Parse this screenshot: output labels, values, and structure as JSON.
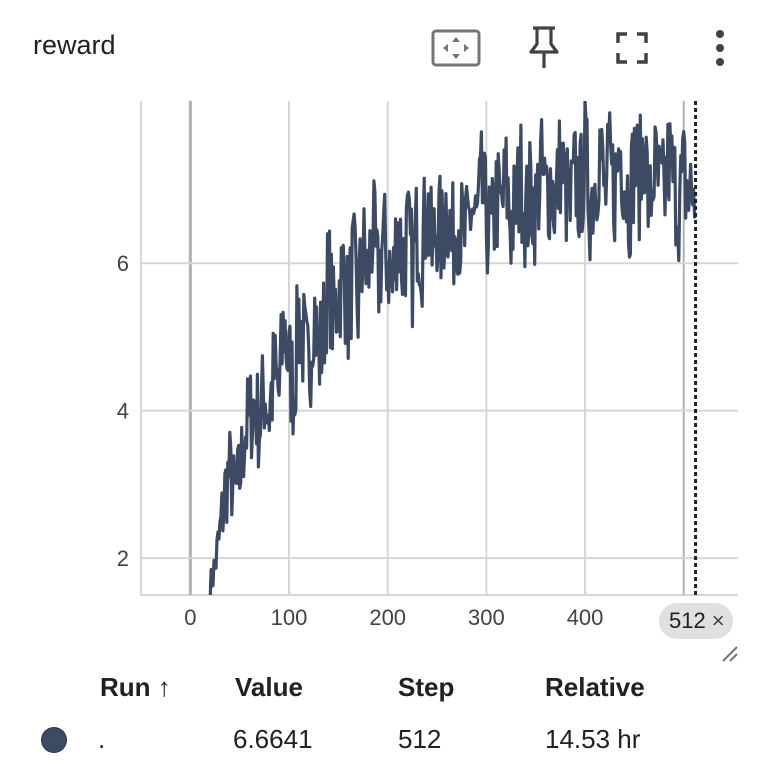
{
  "header": {
    "title": "reward",
    "icons": [
      "fit-domain-icon",
      "pin-icon",
      "fullscreen-icon",
      "more-vert-icon"
    ]
  },
  "colors": {
    "line": "#3d4a63",
    "grid": "#d6d6d6",
    "axis": "#b0b0b0",
    "marker": "#212121"
  },
  "chart_data": {
    "type": "line",
    "title": "reward",
    "xlabel": "",
    "ylabel": "",
    "xlim": [
      -50,
      555
    ],
    "ylim": [
      1.5,
      8.2
    ],
    "x_ticks": [
      0,
      100,
      200,
      300,
      400
    ],
    "y_ticks": [
      2,
      4,
      6
    ],
    "grid": true,
    "cursor_step": 512,
    "series": [
      {
        "x": [
          20,
          25,
          30,
          35,
          40,
          45,
          50,
          55,
          60,
          65,
          70,
          75,
          80,
          85,
          90,
          95,
          100,
          105,
          110,
          115,
          120,
          125,
          130,
          135,
          140,
          145,
          150,
          155,
          160,
          165,
          170,
          175,
          180,
          185,
          190,
          195,
          200,
          205,
          210,
          215,
          220,
          225,
          230,
          235,
          240,
          245,
          250,
          255,
          260,
          265,
          270,
          275,
          280,
          285,
          290,
          295,
          300,
          305,
          310,
          315,
          320,
          325,
          330,
          335,
          340,
          345,
          350,
          355,
          360,
          365,
          370,
          375,
          380,
          385,
          390,
          395,
          400,
          405,
          410,
          415,
          420,
          425,
          430,
          435,
          440,
          445,
          450,
          455,
          460,
          465,
          470,
          475,
          480,
          485,
          490,
          495,
          500,
          505,
          510,
          512
        ],
        "values": [
          1.6,
          1.9,
          2.3,
          2.9,
          3.2,
          2.8,
          3.1,
          3.7,
          3.9,
          4.1,
          3.8,
          4.3,
          4.0,
          4.5,
          4.2,
          5.2,
          4.6,
          4.3,
          5.3,
          4.9,
          4.4,
          5.5,
          4.7,
          5.1,
          5.9,
          5.2,
          5.6,
          5.9,
          5.3,
          6.0,
          5.4,
          6.2,
          5.8,
          6.5,
          5.7,
          6.3,
          6.1,
          5.6,
          6.6,
          6.0,
          6.4,
          5.9,
          6.5,
          6.2,
          6.8,
          6.1,
          6.6,
          6.3,
          6.9,
          6.2,
          6.7,
          6.4,
          6.3,
          6.8,
          6.5,
          7.0,
          6.6,
          6.3,
          6.9,
          6.7,
          7.1,
          6.5,
          6.8,
          7.2,
          6.6,
          7.0,
          6.7,
          7.3,
          6.9,
          7.1,
          6.8,
          7.4,
          7.0,
          6.7,
          7.2,
          6.9,
          7.5,
          6.8,
          7.1,
          7.6,
          6.9,
          7.3,
          7.0,
          7.6,
          7.2,
          6.8,
          7.4,
          7.1,
          7.7,
          6.7,
          7.3,
          7.0,
          6.9,
          7.4,
          7.1,
          6.8,
          7.2,
          6.9,
          7.0,
          6.66
        ],
        "noise_amplitude": [
          0.2,
          0.3,
          0.5,
          0.6,
          0.6,
          0.6,
          0.6,
          0.7,
          0.7,
          0.7,
          0.7,
          0.8,
          0.8,
          0.8,
          0.8,
          0.8,
          0.8,
          0.8,
          0.8,
          0.8,
          0.8,
          0.8,
          0.8,
          0.8,
          0.8,
          0.8,
          0.8,
          0.8,
          0.8,
          0.8,
          0.8,
          0.8,
          0.8,
          0.8,
          0.8,
          0.8,
          0.8,
          0.8,
          0.8,
          0.8,
          0.8,
          0.8,
          0.8,
          0.8,
          0.8,
          0.8,
          0.8,
          0.8,
          0.8,
          0.8,
          0.8,
          0.8,
          0.8,
          0.8,
          0.8,
          0.8,
          0.8,
          0.8,
          0.8,
          0.8,
          0.8,
          0.8,
          0.8,
          0.8,
          0.8,
          0.8,
          0.8,
          0.8,
          0.8,
          0.8,
          0.8,
          0.8,
          0.8,
          0.8,
          0.8,
          0.8,
          0.8,
          0.8,
          0.8,
          0.8,
          0.8,
          0.8,
          0.8,
          0.8,
          0.8,
          0.8,
          0.8,
          0.8,
          0.8,
          0.8,
          0.8,
          0.8,
          0.8,
          0.8,
          0.8,
          0.8,
          0.8,
          0.8,
          0.8,
          0.0
        ]
      }
    ]
  },
  "chip": {
    "step": "512",
    "close": "×"
  },
  "table": {
    "headers": {
      "run": "Run ↑",
      "value": "Value",
      "step": "Step",
      "relative": "Relative"
    },
    "rows": [
      {
        "run": ".",
        "value": "6.6641",
        "step": "512",
        "relative": "14.53 hr"
      }
    ]
  }
}
